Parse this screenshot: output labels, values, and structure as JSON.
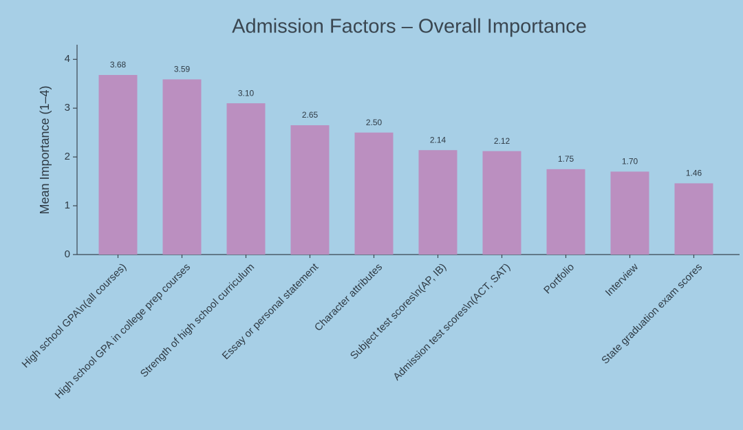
{
  "chart_data": {
    "type": "bar",
    "title": "Admission Factors – Overall Importance",
    "y_label": "Mean Importance (1–4)",
    "categories": [
      "High school GPA\\n(all courses)",
      "High school GPA in college prep courses",
      "Strength of high school curriculum",
      "Essay or personal statement",
      "Character attributes",
      "Subject test scores\\n(AP, IB)",
      "Admission test scores\\n(ACT, SAT)",
      "Portfolio",
      "Interview",
      "State graduation exam scores"
    ],
    "values": [
      3.68,
      3.59,
      3.1,
      2.65,
      2.5,
      2.14,
      2.12,
      1.75,
      1.7,
      1.46
    ],
    "value_labels": [
      "3.68",
      "3.59",
      "3.10",
      "2.65",
      "2.50",
      "2.14",
      "2.12",
      "1.75",
      "1.70",
      "1.46"
    ],
    "color": "#bb8fc0",
    "ylim": [
      0,
      4.3
    ],
    "yticks": [
      0,
      1,
      2,
      3,
      4
    ],
    "grid": false
  }
}
